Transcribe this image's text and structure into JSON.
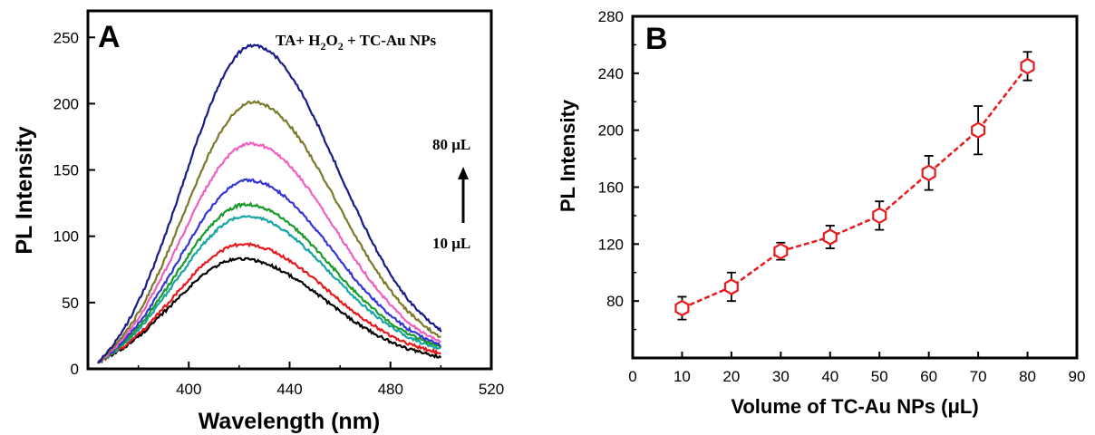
{
  "chart_data": [
    {
      "type": "line",
      "panel_label": "A",
      "xlabel": "Wavelength (nm)",
      "ylabel": "PL Intensity",
      "xlim": [
        360,
        520
      ],
      "ylim": [
        0,
        270
      ],
      "x_ticks": [
        400,
        440,
        480,
        520
      ],
      "y_ticks": [
        0,
        50,
        100,
        150,
        200,
        250
      ],
      "annotation": {
        "prefix": "TA+ H",
        "sub1": "2",
        "mid": "O",
        "sub2": "2",
        "suffix": " + TC-Au NPs"
      },
      "arrow_top_label": "80 μL",
      "arrow_bottom_label": "10 μL",
      "grid": false,
      "series": [
        {
          "color": "#000000",
          "x": [
            364,
            420,
            500
          ],
          "y": [
            5,
            83,
            9
          ]
        },
        {
          "color": "#e8191c",
          "x": [
            364,
            421,
            500
          ],
          "y": [
            5,
            94,
            12
          ]
        },
        {
          "color": "#1aa5a5",
          "x": [
            364,
            422,
            500
          ],
          "y": [
            5,
            115,
            15
          ]
        },
        {
          "color": "#1a9b2a",
          "x": [
            364,
            422,
            500
          ],
          "y": [
            5,
            124,
            17
          ]
        },
        {
          "color": "#3535d5",
          "x": [
            364,
            423,
            500
          ],
          "y": [
            5,
            142,
            18
          ]
        },
        {
          "color": "#f060c0",
          "x": [
            364,
            424,
            500
          ],
          "y": [
            5,
            170,
            20
          ]
        },
        {
          "color": "#7a7a2a",
          "x": [
            364,
            425,
            500
          ],
          "y": [
            5,
            201,
            24
          ]
        },
        {
          "color": "#1a1a88",
          "x": [
            364,
            425,
            500
          ],
          "y": [
            5,
            244,
            29
          ]
        }
      ]
    },
    {
      "type": "scatter",
      "panel_label": "B",
      "xlabel": "Volume of TC-Au NPs (μL)",
      "ylabel": "PL Intensity",
      "xlim": [
        0,
        90
      ],
      "ylim": [
        40,
        280
      ],
      "x_ticks": [
        0,
        10,
        20,
        30,
        40,
        50,
        60,
        70,
        80,
        90
      ],
      "y_ticks": [
        80,
        120,
        160,
        200,
        240,
        280
      ],
      "marker": "hexagon-open",
      "color": "#e8191c",
      "connect": "dashed",
      "grid": false,
      "x": [
        10,
        20,
        30,
        40,
        50,
        60,
        70,
        80
      ],
      "y": [
        75,
        90,
        115,
        125,
        140,
        170,
        200,
        245
      ],
      "error": [
        8,
        10,
        6,
        8,
        10,
        12,
        17,
        10
      ]
    }
  ]
}
